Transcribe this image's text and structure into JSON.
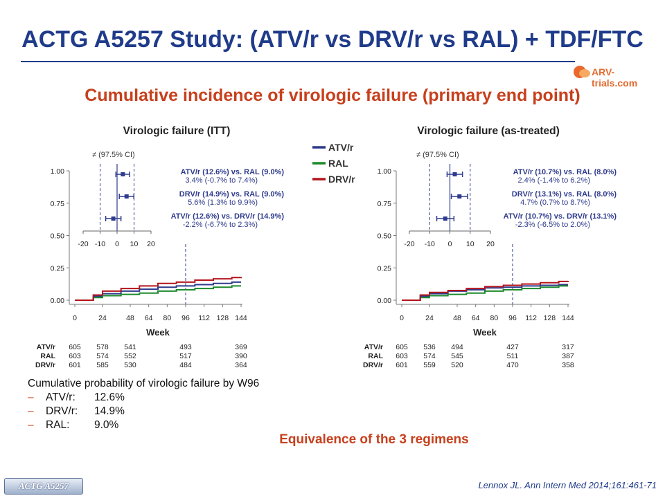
{
  "title": "ACTG A5257 Study: (ATV/r vs DRV/r vs RAL) + TDF/FTC",
  "logo_text": "ARV-trials.com",
  "subtitle": "Cumulative incidence of virologic failure (primary end point)",
  "legend": [
    {
      "name": "ATV/r",
      "color": "#2e3a8c"
    },
    {
      "name": "RAL",
      "color": "#1b8a2c"
    },
    {
      "name": "DRV/r",
      "color": "#b3141b"
    }
  ],
  "colors": {
    "title": "#1f3b8a",
    "accent": "#c7401d",
    "atv": "#2e3a8c",
    "ral": "#1b8a2c",
    "drv": "#b3141b"
  },
  "chart_data": [
    {
      "type": "line",
      "title": "Virologic failure (ITT)",
      "xlabel": "Week",
      "ylabel": "",
      "x_ticks": [
        0,
        24,
        48,
        64,
        80,
        96,
        112,
        128,
        144
      ],
      "y_ticks": [
        "0.00",
        "0.25",
        "0.50",
        "0.75",
        "1.00"
      ],
      "xlim": [
        0,
        144
      ],
      "ylim": [
        0,
        1
      ],
      "reference_line_week": 96,
      "series": [
        {
          "name": "ATV/r",
          "x": [
            0,
            16,
            24,
            40,
            56,
            72,
            88,
            104,
            120,
            136,
            144
          ],
          "y": [
            0.0,
            0.03,
            0.05,
            0.07,
            0.085,
            0.1,
            0.11,
            0.12,
            0.13,
            0.14,
            0.14
          ]
        },
        {
          "name": "RAL",
          "x": [
            0,
            16,
            24,
            40,
            56,
            72,
            88,
            104,
            120,
            136,
            144
          ],
          "y": [
            0.0,
            0.02,
            0.035,
            0.045,
            0.055,
            0.07,
            0.08,
            0.09,
            0.1,
            0.11,
            0.11
          ]
        },
        {
          "name": "DRV/r",
          "x": [
            0,
            16,
            24,
            40,
            56,
            72,
            88,
            104,
            120,
            136,
            144
          ],
          "y": [
            0.0,
            0.04,
            0.07,
            0.09,
            0.11,
            0.13,
            0.14,
            0.155,
            0.165,
            0.175,
            0.18
          ]
        }
      ],
      "inset": {
        "note": "≠ (97.5% CI)",
        "x_ticks": [
          -20,
          -10,
          0,
          10,
          20
        ],
        "xlim": [
          -20,
          20
        ],
        "equivalence_margins": [
          -10,
          10
        ],
        "comparisons": [
          {
            "title": "ATV/r (12.6%) vs. RAL (9.0%)",
            "detail": "3.4% (-0.7% to 7.4%)",
            "est": 3.4,
            "lo": -0.7,
            "hi": 7.4
          },
          {
            "title": "DRV/r (14.9%) vs. RAL (9.0%)",
            "detail": "5.6% (1.3% to 9.9%)",
            "est": 5.6,
            "lo": 1.3,
            "hi": 9.9
          },
          {
            "title": "ATV/r (12.6%) vs. DRV/r (14.9%)",
            "detail": "-2.2% (-6.7% to 2.3%)",
            "est": -2.2,
            "lo": -6.7,
            "hi": 2.3
          }
        ]
      },
      "at_risk": {
        "weeks": [
          0,
          24,
          48,
          96,
          144
        ],
        "rows": [
          {
            "name": "ATV/r",
            "values": [
              "605",
              "578",
              "541",
              "493",
              "369"
            ]
          },
          {
            "name": "RAL",
            "values": [
              "603",
              "574",
              "552",
              "517",
              "390"
            ]
          },
          {
            "name": "DRV/r",
            "values": [
              "601",
              "585",
              "530",
              "484",
              "364"
            ]
          }
        ]
      }
    },
    {
      "type": "line",
      "title": "Virologic failure (as-treated)",
      "xlabel": "Week",
      "ylabel": "",
      "x_ticks": [
        0,
        24,
        48,
        64,
        80,
        96,
        112,
        128,
        144
      ],
      "y_ticks": [
        "0.00",
        "0.25",
        "0.50",
        "0.75",
        "1.00"
      ],
      "xlim": [
        0,
        144
      ],
      "ylim": [
        0,
        1
      ],
      "reference_line_week": 96,
      "series": [
        {
          "name": "ATV/r",
          "x": [
            0,
            16,
            24,
            40,
            56,
            72,
            88,
            104,
            120,
            136,
            144
          ],
          "y": [
            0.0,
            0.03,
            0.05,
            0.07,
            0.08,
            0.095,
            0.1,
            0.11,
            0.115,
            0.12,
            0.12
          ]
        },
        {
          "name": "RAL",
          "x": [
            0,
            16,
            24,
            40,
            56,
            72,
            88,
            104,
            120,
            136,
            144
          ],
          "y": [
            0.0,
            0.02,
            0.035,
            0.045,
            0.055,
            0.07,
            0.08,
            0.09,
            0.1,
            0.11,
            0.11
          ]
        },
        {
          "name": "DRV/r",
          "x": [
            0,
            16,
            24,
            40,
            56,
            72,
            88,
            104,
            120,
            136,
            144
          ],
          "y": [
            0.0,
            0.04,
            0.06,
            0.075,
            0.09,
            0.105,
            0.115,
            0.125,
            0.135,
            0.145,
            0.15
          ]
        }
      ],
      "inset": {
        "note": "≠ (97.5% CI)",
        "x_ticks": [
          -20,
          -10,
          0,
          10,
          20
        ],
        "xlim": [
          -20,
          20
        ],
        "equivalence_margins": [
          -10,
          10
        ],
        "comparisons": [
          {
            "title": "ATV/r (10.7%) vs. RAL (8.0%)",
            "detail": "2.4% (-1.4% to 6.2%)",
            "est": 2.4,
            "lo": -1.4,
            "hi": 6.2
          },
          {
            "title": "DRV/r (13.1%) vs. RAL (8.0%)",
            "detail": "4.7% (0.7% to 8.7%)",
            "est": 4.7,
            "lo": 0.7,
            "hi": 8.7
          },
          {
            "title": "ATV/r (10.7%) vs. DRV/r (13.1%)",
            "detail": "-2.3% (-6.5% to 2.0%)",
            "est": -2.3,
            "lo": -6.5,
            "hi": 2.0
          }
        ]
      },
      "at_risk": {
        "weeks": [
          0,
          24,
          48,
          96,
          144
        ],
        "rows": [
          {
            "name": "ATV/r",
            "values": [
              "605",
              "536",
              "494",
              "427",
              "317"
            ]
          },
          {
            "name": "RAL",
            "values": [
              "603",
              "574",
              "545",
              "511",
              "387"
            ]
          },
          {
            "name": "DRV/r",
            "values": [
              "601",
              "559",
              "520",
              "470",
              "358"
            ]
          }
        ]
      }
    }
  ],
  "notes": {
    "heading": "Cumulative probability of virologic failure by W96",
    "items": [
      {
        "dash": "–",
        "label": "ATV/r:",
        "value": "12.6%"
      },
      {
        "dash": "–",
        "label": "DRV/r:",
        "value": "14.9%"
      },
      {
        "dash": "–",
        "label": "RAL:",
        "value": "9.0%"
      }
    ]
  },
  "conclusion": "Equivalence of the 3 regimens",
  "study_tag": "ACTG A5257",
  "reference": "Lennox JL. Ann Intern Med 2014;161:461-71"
}
